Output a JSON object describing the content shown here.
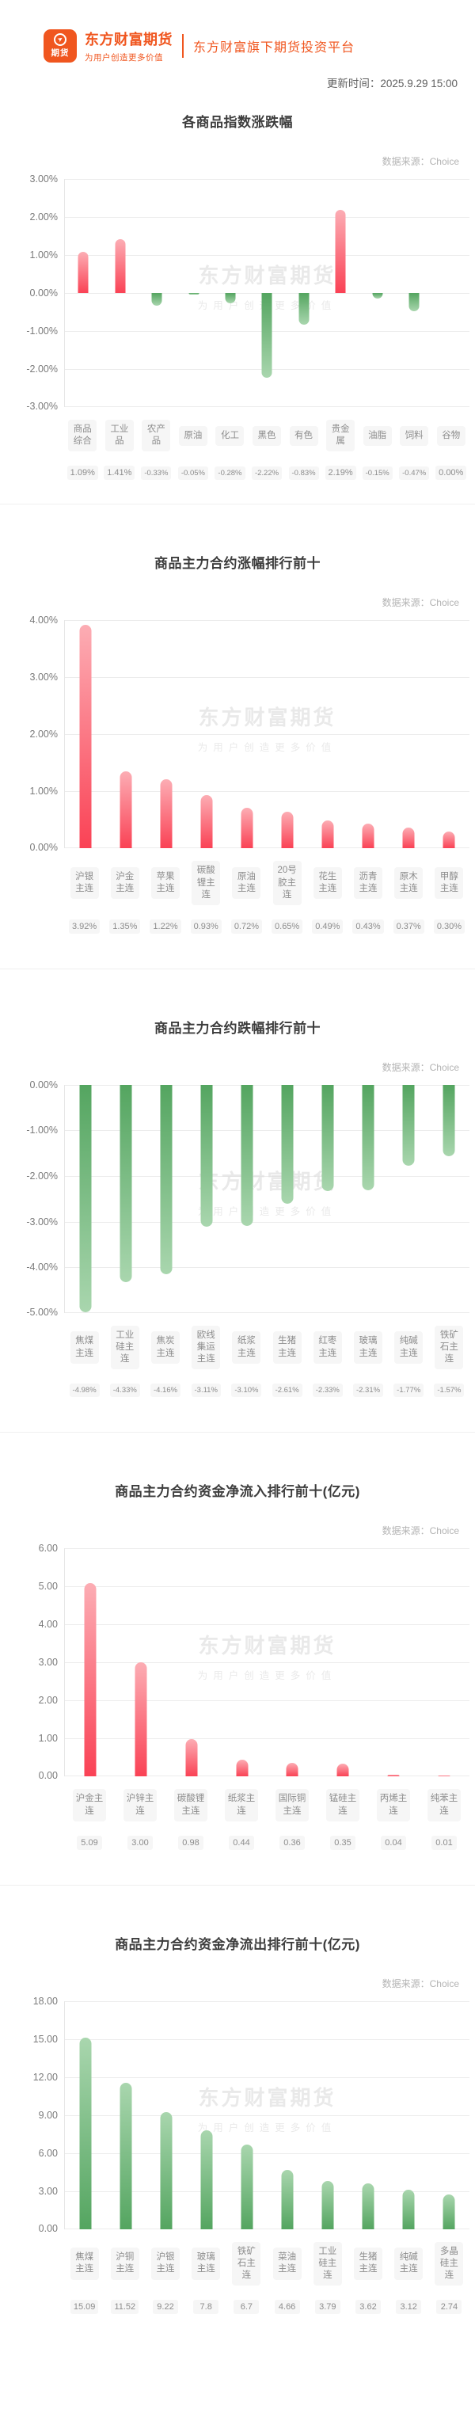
{
  "header": {
    "logo_badge_text": "期货",
    "brand_name": "东方财富期货",
    "brand_slogan": "为用户创造更多价值",
    "platform_caption": "东方财富旗下期货投资平台",
    "update_time_label": "更新时间：",
    "update_time": "2025.9.29 15:00"
  },
  "watermark": {
    "line1": "东方财富期货",
    "line2": "为用户创造更多价值"
  },
  "colors": {
    "brand_orange": "#f0561f",
    "bar_red_base": "#fa4255",
    "bar_red_tip": "#fcadb4",
    "bar_green_base": "#54a560",
    "bar_green_tip": "#a9d6ae",
    "grid": "#ececec",
    "badge_bg": "#f6f6f6",
    "badge_text": "#8c8c8c"
  },
  "chart_data": [
    {
      "type": "bar",
      "title": "各商品指数涨跌幅",
      "source_label": "数据来源：",
      "source_name": "Choice",
      "categories": [
        "商品综合",
        "工业品",
        "农产品",
        "原油",
        "化工",
        "黑色",
        "有色",
        "贵金属",
        "油脂",
        "饲料",
        "谷物"
      ],
      "values": [
        1.09,
        1.41,
        -0.33,
        -0.05,
        -0.28,
        -2.22,
        -0.83,
        2.19,
        -0.15,
        -0.47,
        0.0
      ],
      "value_labels": [
        "1.09%",
        "1.41%",
        "-0.33%",
        "-0.05%",
        "-0.28%",
        "-2.22%",
        "-0.83%",
        "2.19%",
        "-0.15%",
        "-0.47%",
        "0.00%"
      ],
      "ylim": [
        -3,
        3
      ],
      "yticks": [
        {
          "label": "3.00%",
          "value": 3
        },
        {
          "label": "2.00%",
          "value": 2
        },
        {
          "label": "1.00%",
          "value": 1
        },
        {
          "label": "0.00%",
          "value": 0
        },
        {
          "label": "-1.00%",
          "value": -1
        },
        {
          "label": "-2.00%",
          "value": -2
        },
        {
          "label": "-3.00%",
          "value": -3
        }
      ],
      "color_mode": "by_sign",
      "legend": "none",
      "grid": "on"
    },
    {
      "type": "bar",
      "title": "商品主力合约涨幅排行前十",
      "source_label": "数据来源：",
      "source_name": "Choice",
      "categories": [
        "沪银主连",
        "沪金主连",
        "苹果主连",
        "碳酸锂主连",
        "原油主连",
        "20号胶主连",
        "花生主连",
        "沥青主连",
        "原木主连",
        "甲醇主连"
      ],
      "values": [
        3.92,
        1.35,
        1.22,
        0.93,
        0.72,
        0.65,
        0.49,
        0.43,
        0.37,
        0.3
      ],
      "value_labels": [
        "3.92%",
        "1.35%",
        "1.22%",
        "0.93%",
        "0.72%",
        "0.65%",
        "0.49%",
        "0.43%",
        "0.37%",
        "0.30%"
      ],
      "ylim": [
        0,
        4
      ],
      "yticks": [
        {
          "label": "4.00%",
          "value": 4
        },
        {
          "label": "3.00%",
          "value": 3
        },
        {
          "label": "2.00%",
          "value": 2
        },
        {
          "label": "1.00%",
          "value": 1
        },
        {
          "label": "0.00%",
          "value": 0
        }
      ],
      "color_mode": "red",
      "legend": "none",
      "grid": "on"
    },
    {
      "type": "bar",
      "title": "商品主力合约跌幅排行前十",
      "source_label": "数据来源：",
      "source_name": "Choice",
      "categories": [
        "焦煤主连",
        "工业硅主连",
        "焦炭主连",
        "欧线集运主连",
        "纸浆主连",
        "生猪主连",
        "红枣主连",
        "玻璃主连",
        "纯碱主连",
        "铁矿石主连"
      ],
      "values": [
        -4.98,
        -4.33,
        -4.16,
        -3.11,
        -3.1,
        -2.61,
        -2.33,
        -2.31,
        -1.77,
        -1.57
      ],
      "value_labels": [
        "-4.98%",
        "-4.33%",
        "-4.16%",
        "-3.11%",
        "-3.10%",
        "-2.61%",
        "-2.33%",
        "-2.31%",
        "-1.77%",
        "-1.57%"
      ],
      "ylim": [
        -5,
        0
      ],
      "yticks": [
        {
          "label": "0.00%",
          "value": 0
        },
        {
          "label": "-1.00%",
          "value": -1
        },
        {
          "label": "-2.00%",
          "value": -2
        },
        {
          "label": "-3.00%",
          "value": -3
        },
        {
          "label": "-4.00%",
          "value": -4
        },
        {
          "label": "-5.00%",
          "value": -5
        }
      ],
      "color_mode": "by_sign",
      "legend": "none",
      "grid": "on"
    },
    {
      "type": "bar",
      "title": "商品主力合约资金净流入排行前十(亿元)",
      "source_label": "数据来源：",
      "source_name": "Choice",
      "categories": [
        "沪金主连",
        "沪锌主连",
        "碳酸锂主连",
        "纸浆主连",
        "国际铜主连",
        "锰硅主连",
        "丙烯主连",
        "纯苯主连"
      ],
      "values": [
        5.09,
        3.0,
        0.98,
        0.44,
        0.36,
        0.35,
        0.04,
        0.01
      ],
      "value_labels": [
        "5.09",
        "3.00",
        "0.98",
        "0.44",
        "0.36",
        "0.35",
        "0.04",
        "0.01"
      ],
      "ylim": [
        0,
        6
      ],
      "yticks": [
        {
          "label": "6.00",
          "value": 6
        },
        {
          "label": "5.00",
          "value": 5
        },
        {
          "label": "4.00",
          "value": 4
        },
        {
          "label": "3.00",
          "value": 3
        },
        {
          "label": "2.00",
          "value": 2
        },
        {
          "label": "1.00",
          "value": 1
        },
        {
          "label": "0.00",
          "value": 0
        }
      ],
      "color_mode": "red",
      "legend": "none",
      "grid": "on"
    },
    {
      "type": "bar",
      "title": "商品主力合约资金净流出排行前十(亿元)",
      "source_label": "数据来源：",
      "source_name": "Choice",
      "categories": [
        "焦煤主连",
        "沪铜主连",
        "沪银主连",
        "玻璃主连",
        "铁矿石主连",
        "菜油主连",
        "工业硅主连",
        "生猪主连",
        "纯碱主连",
        "多晶硅主连"
      ],
      "values": [
        15.09,
        11.52,
        9.22,
        7.8,
        6.7,
        4.66,
        3.79,
        3.62,
        3.12,
        2.74
      ],
      "value_labels": [
        "15.09",
        "11.52",
        "9.22",
        "7.8",
        "6.7",
        "4.66",
        "3.79",
        "3.62",
        "3.12",
        "2.74"
      ],
      "ylim": [
        0,
        18
      ],
      "yticks": [
        {
          "label": "18.00",
          "value": 18
        },
        {
          "label": "15.00",
          "value": 15
        },
        {
          "label": "12.00",
          "value": 12
        },
        {
          "label": "9.00",
          "value": 9
        },
        {
          "label": "6.00",
          "value": 6
        },
        {
          "label": "3.00",
          "value": 3
        },
        {
          "label": "0.00",
          "value": 0
        }
      ],
      "color_mode": "green",
      "legend": "none",
      "grid": "on"
    }
  ]
}
